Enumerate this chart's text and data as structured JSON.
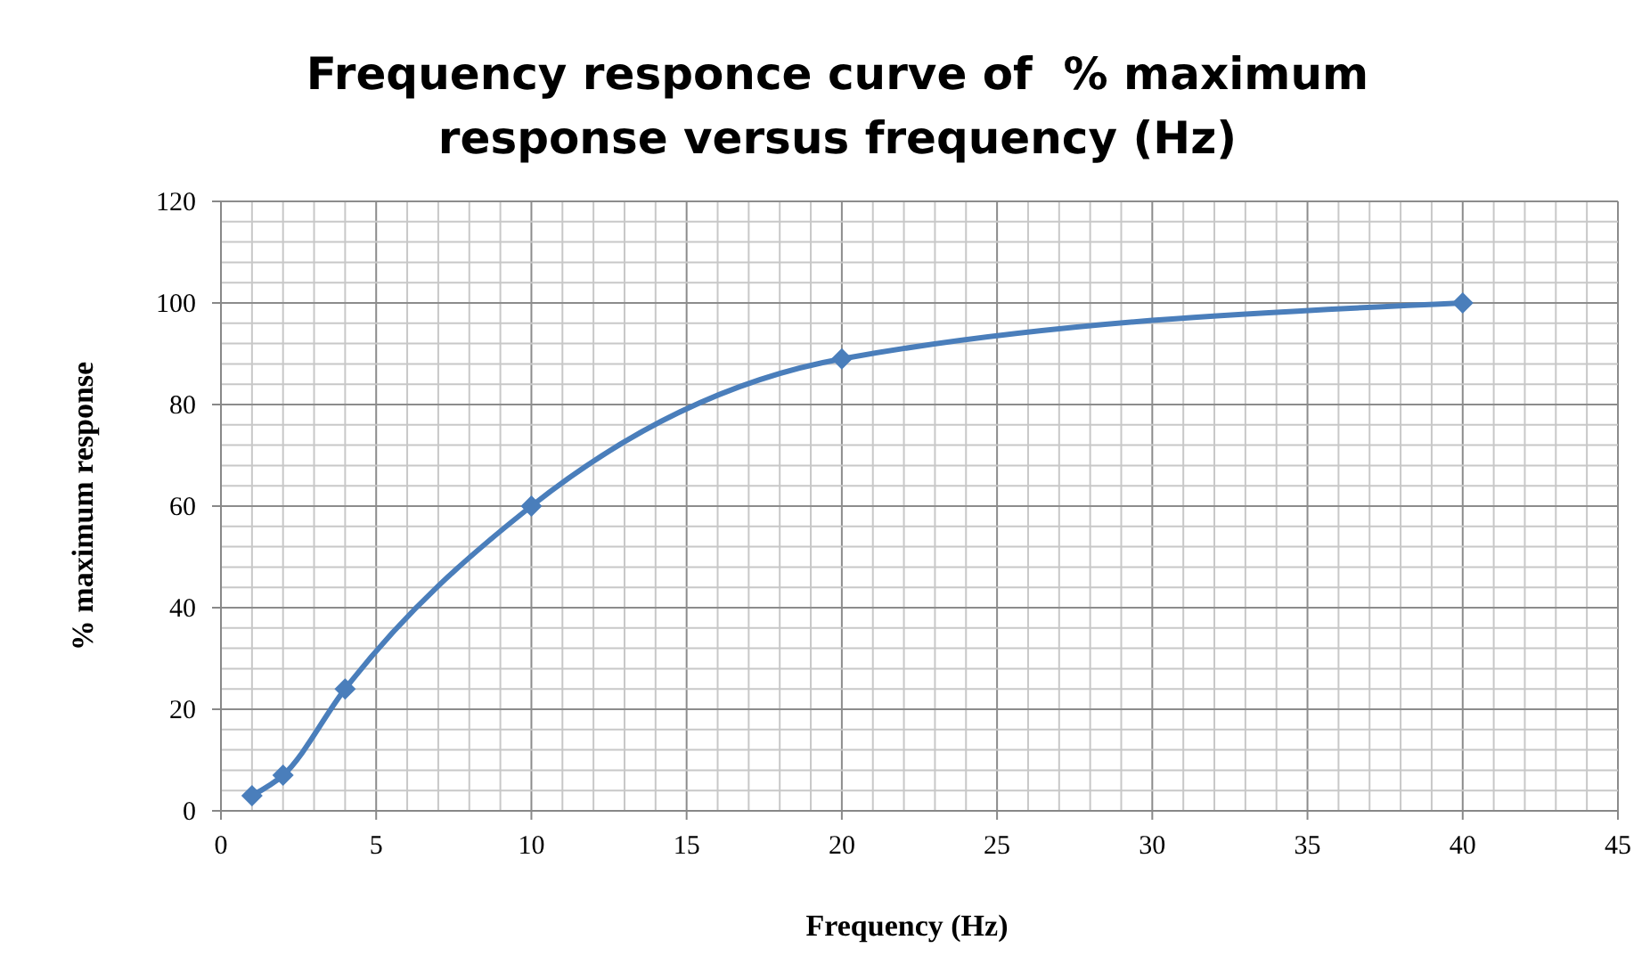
{
  "chart_data": {
    "type": "line",
    "title": "Frequency responce curve of  % maximum response versus frequency (Hz)",
    "xlabel": "Frequency (Hz)",
    "ylabel": "% maximum response",
    "x": [
      1,
      2,
      4,
      10,
      20,
      40
    ],
    "series": [
      {
        "color": "#4a7ebb",
        "values": [
          3,
          7,
          24,
          60,
          89,
          100
        ]
      }
    ],
    "xlim": [
      0,
      45
    ],
    "ylim": [
      0,
      120
    ],
    "xticks": [
      0,
      {
        "value": 1,
        "label": null
      },
      {
        "value": 2,
        "label": null
      },
      {
        "value": 3,
        "label": null
      },
      {
        "value": 4,
        "label": null
      },
      5,
      {
        "value": 6,
        "label": null
      },
      {
        "value": 7,
        "label": null
      },
      {
        "value": 8,
        "label": null
      },
      {
        "value": 9,
        "label": null
      },
      10,
      {
        "value": 11,
        "label": null
      },
      {
        "value": 12,
        "label": null
      },
      {
        "value": 13,
        "label": null
      },
      {
        "value": 14,
        "label": null
      },
      15,
      {
        "value": 16,
        "label": null
      },
      {
        "value": 17,
        "label": null
      },
      {
        "value": 18,
        "label": null
      },
      {
        "value": 19,
        "label": null
      },
      20,
      {
        "value": 21,
        "label": null
      },
      {
        "value": 22,
        "label": null
      },
      {
        "value": 23,
        "label": null
      },
      {
        "value": 24,
        "label": null
      },
      25,
      {
        "value": 26,
        "label": null
      },
      {
        "value": 27,
        "label": null
      },
      {
        "value": 28,
        "label": null
      },
      {
        "value": 29,
        "label": null
      },
      30,
      {
        "value": 31,
        "label": null
      },
      {
        "value": 32,
        "label": null
      },
      {
        "value": 33,
        "label": null
      },
      {
        "value": 34,
        "label": null
      },
      35,
      {
        "value": 36,
        "label": null
      },
      {
        "value": 37,
        "label": null
      },
      {
        "value": 38,
        "label": null
      },
      {
        "value": 39,
        "label": null
      },
      40,
      {
        "value": 41,
        "label": null
      },
      {
        "value": 42,
        "label": null
      },
      {
        "value": 43,
        "label": null
      },
      {
        "value": 44,
        "label": null
      },
      45
    ],
    "yticks": [
      0,
      {
        "value": 4,
        "label": null
      },
      {
        "value": 8,
        "label": null
      },
      {
        "value": 12,
        "label": null
      },
      {
        "value": 16,
        "label": null
      },
      20,
      {
        "value": 24,
        "label": null
      },
      {
        "value": 28,
        "label": null
      },
      {
        "value": 32,
        "label": null
      },
      {
        "value": 36,
        "label": null
      },
      40,
      {
        "value": 44,
        "label": null
      },
      {
        "value": 48,
        "label": null
      },
      {
        "value": 52,
        "label": null
      },
      {
        "value": 56,
        "label": null
      },
      60,
      {
        "value": 64,
        "label": null
      },
      {
        "value": 68,
        "label": null
      },
      {
        "value": 72,
        "label": null
      },
      {
        "value": 76,
        "label": null
      },
      80,
      {
        "value": 84,
        "label": null
      },
      {
        "value": 88,
        "label": null
      },
      {
        "value": 92,
        "label": null
      },
      {
        "value": 96,
        "label": null
      },
      100,
      {
        "value": 104,
        "label": null
      },
      {
        "value": 108,
        "label": null
      },
      {
        "value": 112,
        "label": null
      },
      {
        "value": 116,
        "label": null
      },
      120
    ],
    "grid": true,
    "marker": "diamond",
    "line_style": "solid"
  }
}
